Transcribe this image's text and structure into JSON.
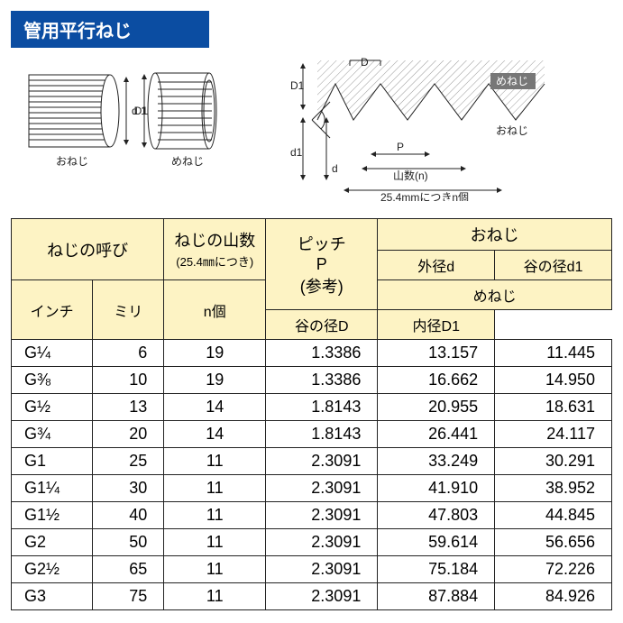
{
  "title": "管用平行ねじ",
  "diagram_left": {
    "label_oneji": "おねじ",
    "label_meneji": "めねじ",
    "dim_d1": "d 1",
    "dim_D1": "D 1"
  },
  "diagram_right": {
    "label_D": "D",
    "label_D1": "D1",
    "label_meneji": "めねじ",
    "label_oneji": "おねじ",
    "label_P": "P",
    "label_d": "d",
    "label_d1": "d1",
    "label_sansuu": "山数(n)",
    "label_per25": "25.4mmにつきn個"
  },
  "table": {
    "header": {
      "neji_yobi": "ねじの呼び",
      "neji_yamasu": "ねじの山数",
      "neji_yamasu_sub": "(25.4㎜につき)",
      "n_ko": "n個",
      "pitch": "ピッチ",
      "pitch_sub": "P",
      "pitch_sub2": "(参考)",
      "oneji": "おねじ",
      "gaikei_d": "外径d",
      "tani_d1": "谷の径d1",
      "meneji": "めねじ",
      "tani_D": "谷の径D",
      "naikei_D1": "内径D1",
      "inch": "インチ",
      "mm": "ミリ"
    },
    "rows": [
      {
        "inch": "G¼",
        "mm": "6",
        "n": "19",
        "p": "1.3386",
        "d": "13.157",
        "d1": "11.445"
      },
      {
        "inch": "G⅜",
        "mm": "10",
        "n": "19",
        "p": "1.3386",
        "d": "16.662",
        "d1": "14.950"
      },
      {
        "inch": "G½",
        "mm": "13",
        "n": "14",
        "p": "1.8143",
        "d": "20.955",
        "d1": "18.631"
      },
      {
        "inch": "G¾",
        "mm": "20",
        "n": "14",
        "p": "1.8143",
        "d": "26.441",
        "d1": "24.117"
      },
      {
        "inch": "G1",
        "mm": "25",
        "n": "11",
        "p": "2.3091",
        "d": "33.249",
        "d1": "30.291"
      },
      {
        "inch": "G1¼",
        "mm": "30",
        "n": "11",
        "p": "2.3091",
        "d": "41.910",
        "d1": "38.952"
      },
      {
        "inch": "G1½",
        "mm": "40",
        "n": "11",
        "p": "2.3091",
        "d": "47.803",
        "d1": "44.845"
      },
      {
        "inch": "G2",
        "mm": "50",
        "n": "11",
        "p": "2.3091",
        "d": "59.614",
        "d1": "56.656"
      },
      {
        "inch": "G2½",
        "mm": "65",
        "n": "11",
        "p": "2.3091",
        "d": "75.184",
        "d1": "72.226"
      },
      {
        "inch": "G3",
        "mm": "75",
        "n": "11",
        "p": "2.3091",
        "d": "87.884",
        "d1": "84.926"
      }
    ]
  },
  "colors": {
    "title_bg": "#0b4da2",
    "title_fg": "#ffffff",
    "header_bg": "#fdf3c4",
    "border": "#222222",
    "hatch": "#bfbfbf"
  }
}
